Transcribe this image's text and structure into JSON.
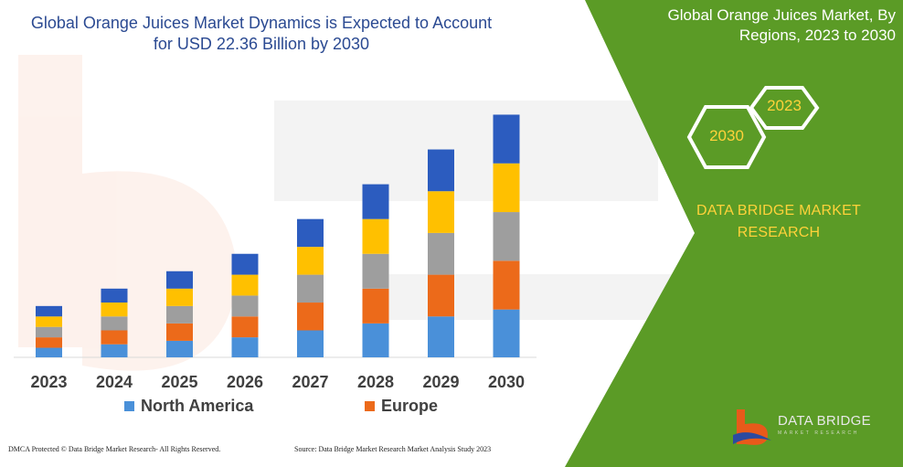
{
  "header": {
    "title_line1": "Global Orange Juices Market Dynamics is Expected to Account",
    "title_line2": "for USD 22.36 Billion by 2030"
  },
  "side_panel": {
    "title_line1": "Global Orange Juices Market, By",
    "title_line2": "Regions, 2023 to 2030",
    "hex_front": "2030",
    "hex_back": "2023",
    "company_line1": "DATA BRIDGE MARKET",
    "company_line2": "RESEARCH",
    "logo_line1": "DATA BRIDGE",
    "logo_line2": "MARKET RESEARCH"
  },
  "footer": {
    "left": "DMCA Protected © Data Bridge Market Research- All Rights Reserved.",
    "right": "Source: Data Bridge Market Research Market Analysis Study 2023"
  },
  "colors": {
    "north_america": "#4a90d9",
    "europe": "#ec6a1a",
    "grey_segment": "#9e9e9e",
    "yellow_segment": "#ffc000",
    "dark_blue_segment": "#2c5cbf",
    "panel_green": "#5b9b26",
    "title_blue": "#2b4a92",
    "accent_yellow": "#ffd23a"
  },
  "chart_data": {
    "type": "bar",
    "stacked": true,
    "categories": [
      "2023",
      "2024",
      "2025",
      "2026",
      "2027",
      "2028",
      "2029",
      "2030"
    ],
    "series": [
      {
        "name": "North America",
        "values": [
          11,
          15,
          19,
          23,
          31,
          39,
          47,
          55
        ]
      },
      {
        "name": "Europe",
        "values": [
          12,
          16,
          20,
          24,
          32,
          40,
          48,
          56
        ]
      },
      {
        "name": "",
        "values": [
          12,
          16,
          20,
          24,
          32,
          40,
          48,
          56
        ]
      },
      {
        "name": "",
        "values": [
          12,
          16,
          20,
          24,
          32,
          40,
          48,
          56
        ]
      },
      {
        "name": "",
        "values": [
          12,
          16,
          20,
          24,
          32,
          40,
          48,
          56
        ]
      }
    ],
    "legend": [
      "North America",
      "Europe"
    ],
    "ylim": [
      0,
      290
    ],
    "grid": false
  }
}
